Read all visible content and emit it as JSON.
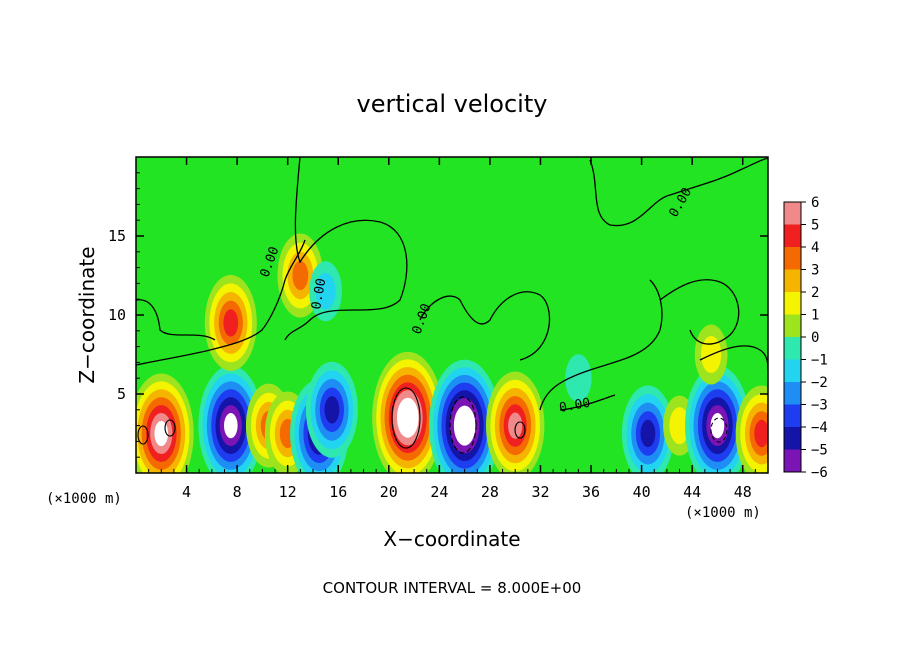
{
  "chart_data": {
    "type": "heatmap",
    "title": "vertical velocity",
    "xlabel": "X−coordinate",
    "ylabel": "Z−coordinate",
    "x_unit": "(×1000 m)",
    "z_unit": "(×1000 m)",
    "xlim": [
      0,
      50
    ],
    "ylim": [
      0,
      20
    ],
    "x_ticks": [
      4,
      8,
      12,
      16,
      20,
      24,
      28,
      32,
      36,
      40,
      44,
      48
    ],
    "y_ticks": [
      5,
      10,
      15
    ],
    "colorbar": {
      "ticks": [
        "6",
        "5",
        "4",
        "3",
        "2",
        "1",
        "0",
        "−1",
        "−2",
        "−3",
        "−4",
        "−5",
        "−6"
      ],
      "range": [
        -6,
        6
      ]
    },
    "contour_labels": [
      "0.00",
      "0.00",
      "0.00",
      "0.00",
      "0.00"
    ],
    "footer": "CONTOUR INTERVAL = 8.000E+00",
    "cells_upwind_note": "",
    "cells": [
      {
        "x": 2.0,
        "z": 2.5,
        "w": 7
      },
      {
        "x": 7.5,
        "z": 3.0,
        "w": -7
      },
      {
        "x": 10.5,
        "z": 3.0,
        "w": 4
      },
      {
        "x": 12.0,
        "z": 2.5,
        "w": 4
      },
      {
        "x": 14.5,
        "z": 2.5,
        "w": -6
      },
      {
        "x": 15.5,
        "z": 4.0,
        "w": -5
      },
      {
        "x": 21.5,
        "z": 3.5,
        "w": 8
      },
      {
        "x": 26.0,
        "z": 3.0,
        "w": -8
      },
      {
        "x": 30.0,
        "z": 3.0,
        "w": 6
      },
      {
        "x": 40.5,
        "z": 2.5,
        "w": -5
      },
      {
        "x": 43.0,
        "z": 3.0,
        "w": 2
      },
      {
        "x": 46.0,
        "z": 3.0,
        "w": -7
      },
      {
        "x": 49.5,
        "z": 2.5,
        "w": 5
      },
      {
        "x": 7.5,
        "z": 9.5,
        "w": 5
      },
      {
        "x": 13.0,
        "z": 12.5,
        "w": 4
      },
      {
        "x": 15.0,
        "z": 11.5,
        "w": -2
      },
      {
        "x": 45.5,
        "z": 7.5,
        "w": 2
      },
      {
        "x": 35.0,
        "z": 6.0,
        "w": -1
      }
    ]
  }
}
